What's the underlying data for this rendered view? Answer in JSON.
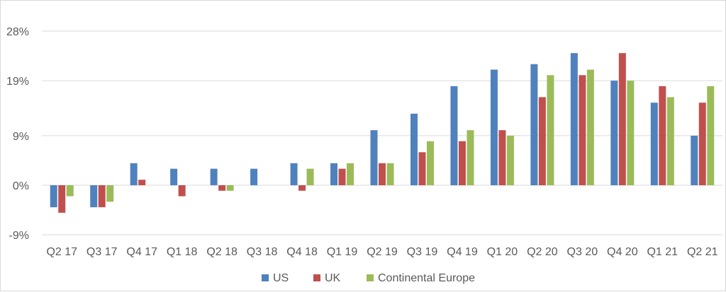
{
  "chart_data": {
    "type": "bar",
    "title": "",
    "xlabel": "",
    "ylabel": "",
    "categories": [
      "Q2 17",
      "Q3 17",
      "Q4 17",
      "Q1 18",
      "Q2 18",
      "Q3 18",
      "Q4 18",
      "Q1 19",
      "Q2 19",
      "Q3 19",
      "Q4 19",
      "Q1 20",
      "Q2 20",
      "Q3 20",
      "Q4 20",
      "Q1 21",
      "Q2 21"
    ],
    "series": [
      {
        "name": "US",
        "color": "#4f81bd",
        "values": [
          -4,
          -4,
          4,
          3,
          3,
          3,
          4,
          4,
          10,
          13,
          18,
          21,
          22,
          24,
          19,
          15,
          9
        ]
      },
      {
        "name": "UK",
        "color": "#c0504d",
        "values": [
          -5,
          -4,
          1,
          -2,
          -1,
          0,
          -1,
          3,
          4,
          6,
          8,
          10,
          16,
          20,
          24,
          18,
          15
        ]
      },
      {
        "name": "Continental Europe",
        "color": "#9bbb59",
        "values": [
          -2,
          -3,
          0,
          0,
          -1,
          0,
          3,
          4,
          4,
          8,
          10,
          9,
          20,
          21,
          19,
          16,
          18
        ]
      }
    ],
    "y_ticks": [
      "28%",
      "19%",
      "9%",
      "0%",
      "-9%"
    ],
    "y_tick_values": [
      28,
      19,
      9,
      0,
      -9
    ],
    "ylim": [
      -9,
      28
    ],
    "grid": true,
    "legend_position": "bottom"
  }
}
